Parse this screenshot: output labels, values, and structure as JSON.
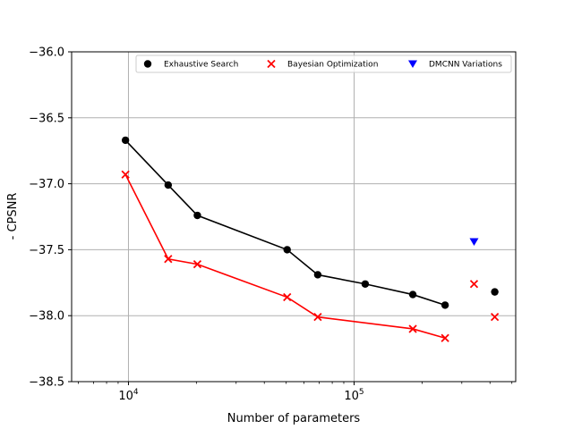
{
  "chart_data": {
    "type": "scatter",
    "xlabel": "Number of parameters",
    "ylabel": "- CPSNR",
    "xscale": "log",
    "xlim": [
      5600,
      520000
    ],
    "ylim": [
      -38.5,
      -36.0
    ],
    "grid": true,
    "legend_placement": "top",
    "x_ticks": [
      {
        "value": 10000,
        "base": "10",
        "exp": "4"
      },
      {
        "value": 100000,
        "base": "10",
        "exp": "5"
      }
    ],
    "y_ticks": [
      {
        "value": -36.0,
        "label": "−36.0"
      },
      {
        "value": -36.5,
        "label": "−36.5"
      },
      {
        "value": -37.0,
        "label": "−37.0"
      },
      {
        "value": -37.5,
        "label": "−37.5"
      },
      {
        "value": -38.0,
        "label": "−38.0"
      },
      {
        "value": -38.5,
        "label": "−38.5"
      }
    ],
    "series": [
      {
        "name": "Exhaustive Search",
        "color": "#000000",
        "marker": "circle",
        "points": [
          {
            "x": 9700,
            "y": -36.67
          },
          {
            "x": 15000,
            "y": -37.01
          },
          {
            "x": 20200,
            "y": -37.24
          },
          {
            "x": 50500,
            "y": -37.5
          },
          {
            "x": 69000,
            "y": -37.69
          },
          {
            "x": 112000,
            "y": -37.76
          },
          {
            "x": 182000,
            "y": -37.84
          },
          {
            "x": 253000,
            "y": -37.92
          },
          {
            "x": 420000,
            "y": -37.82
          }
        ],
        "line_through_first": 8
      },
      {
        "name": "Bayesian Optimization",
        "color": "#ff0000",
        "marker": "x",
        "points": [
          {
            "x": 9700,
            "y": -36.93
          },
          {
            "x": 15000,
            "y": -37.57
          },
          {
            "x": 20200,
            "y": -37.61
          },
          {
            "x": 50500,
            "y": -37.86
          },
          {
            "x": 69000,
            "y": -38.01
          },
          {
            "x": 182000,
            "y": -38.1
          },
          {
            "x": 253000,
            "y": -38.17
          },
          {
            "x": 340000,
            "y": -37.76
          },
          {
            "x": 420000,
            "y": -38.01
          }
        ],
        "line_through_first": 7
      },
      {
        "name": "DMCNN Variations",
        "color": "#0000ff",
        "marker": "triangle-down",
        "points": [
          {
            "x": 340000,
            "y": -37.44
          }
        ],
        "line_through_first": 0
      }
    ]
  }
}
